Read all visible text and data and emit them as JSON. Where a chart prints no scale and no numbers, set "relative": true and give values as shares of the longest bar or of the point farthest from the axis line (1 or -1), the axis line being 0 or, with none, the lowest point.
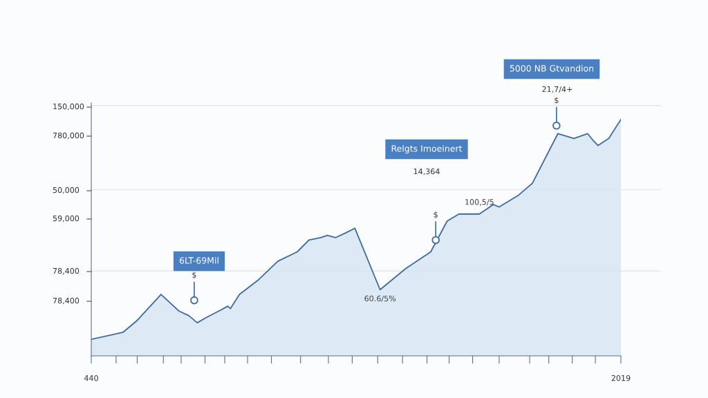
{
  "chart_data": {
    "type": "area",
    "relative": true,
    "x": [
      440,
      535,
      577,
      648,
      701,
      731,
      756,
      780,
      821,
      847,
      855,
      882,
      937,
      996,
      1054,
      1089,
      1124,
      1144,
      1168,
      1198,
      1226,
      1301,
      1378,
      1452,
      1501,
      1536,
      1597,
      1639,
      1656,
      1714,
      1755,
      1831,
      1879,
      1920,
      1937,
      1951,
      1983,
      2019
    ],
    "series": [
      {
        "color": "#3d6a9e",
        "values": [
          0.07,
          0.1,
          0.15,
          0.26,
          0.19,
          0.17,
          0.14,
          0.16,
          0.19,
          0.21,
          0.2,
          0.26,
          0.32,
          0.4,
          0.44,
          0.49,
          0.5,
          0.51,
          0.5,
          0.52,
          0.54,
          0.28,
          0.37,
          0.44,
          0.57,
          0.6,
          0.6,
          0.64,
          0.63,
          0.68,
          0.73,
          0.94,
          0.92,
          0.94,
          0.91,
          0.89,
          0.92,
          1
        ]
      }
    ],
    "xlim": [
      440,
      2019
    ],
    "xticks": [
      440,
      {
        "value": 514,
        "label": null
      },
      {
        "value": 577,
        "label": null
      },
      {
        "value": 655,
        "label": null
      },
      {
        "value": 708,
        "label": null
      },
      {
        "value": 779,
        "label": null
      },
      {
        "value": 838,
        "label": null
      },
      {
        "value": 906,
        "label": null
      },
      {
        "value": 977,
        "label": null
      },
      {
        "value": 1064,
        "label": null
      },
      {
        "value": 1147,
        "label": null
      },
      {
        "value": 1218,
        "label": null
      },
      {
        "value": 1294,
        "label": null
      },
      {
        "value": 1368,
        "label": null
      },
      {
        "value": 1441,
        "label": null
      },
      {
        "value": 1507,
        "label": null
      },
      {
        "value": 1577,
        "label": null
      },
      {
        "value": 1656,
        "label": null
      },
      {
        "value": 1747,
        "label": null
      },
      {
        "value": 1804,
        "label": null
      },
      {
        "value": 1874,
        "label": null
      },
      {
        "value": 1943,
        "label": null
      },
      2019
    ],
    "ref_lines": [
      {
        "axis": "y",
        "value": 1.059,
        "color": "#e3e7ec"
      },
      {
        "axis": "y",
        "value": 0.703,
        "color": "#e3e7ec"
      },
      {
        "axis": "y",
        "value": 0.359,
        "color": "#e3e7ec"
      }
    ],
    "annotations": [
      "6LT-69Mil",
      "Relgts Imoeinert",
      "14,364",
      "5000 NB Gtvandion",
      "21,7/4+",
      "150,000",
      "780,000",
      "50,000",
      "59,000",
      "78,400",
      "78,400",
      {
        "text": "$",
        "x": 747,
        "y": 0.235
      },
      {
        "text": "$",
        "x": 1467,
        "y": 0.49
      },
      {
        "text": "$",
        "x": 1827,
        "y": 0.974
      },
      {
        "text": "100,5/5",
        "x": 1597,
        "y": 0.6
      },
      {
        "text": "60.6/5%",
        "x": 1301,
        "y": 0.28
      }
    ]
  }
}
